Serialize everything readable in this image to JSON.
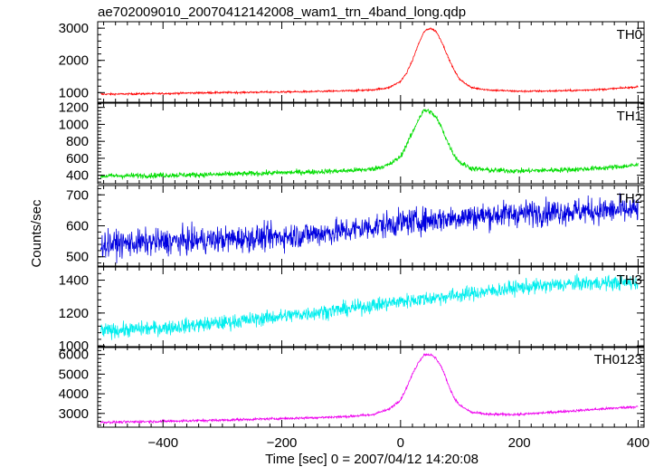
{
  "title": "ae702009010_20070412142008_wam1_trn_4band_long.qdp",
  "ylabel": "Counts/sec",
  "xlabel": "Time [sec] 0 = 2007/04/12 14:20:08",
  "chart_data": [
    {
      "type": "line",
      "name": "TH0",
      "color": "#ff0000",
      "ylim": [
        700,
        3200
      ],
      "yticks": [
        1000,
        2000,
        3000
      ],
      "xlim": [
        -510,
        410
      ],
      "xticks": [
        -400,
        -200,
        0,
        200,
        400
      ],
      "x": [
        -505,
        -450,
        -400,
        -350,
        -300,
        -250,
        -200,
        -150,
        -100,
        -50,
        -20,
        0,
        10,
        20,
        30,
        40,
        50,
        60,
        70,
        80,
        90,
        100,
        120,
        150,
        200,
        250,
        300,
        350,
        400
      ],
      "y": [
        950,
        960,
        970,
        990,
        1000,
        1010,
        1020,
        1030,
        1050,
        1080,
        1150,
        1350,
        1600,
        2000,
        2500,
        2900,
        3000,
        2900,
        2550,
        2100,
        1700,
        1400,
        1150,
        1080,
        1040,
        1050,
        1070,
        1110,
        1180
      ],
      "noise": 20
    },
    {
      "type": "line",
      "name": "TH1",
      "color": "#00dd00",
      "ylim": [
        300,
        1250
      ],
      "yticks": [
        400,
        600,
        800,
        1000,
        1200
      ],
      "xlim": [
        -510,
        410
      ],
      "xticks": [
        -400,
        -200,
        0,
        200,
        400
      ],
      "x": [
        -505,
        -450,
        -400,
        -350,
        -300,
        -250,
        -200,
        -150,
        -100,
        -50,
        -20,
        0,
        10,
        20,
        30,
        40,
        50,
        60,
        70,
        80,
        90,
        100,
        120,
        150,
        200,
        250,
        300,
        350,
        400
      ],
      "y": [
        390,
        395,
        400,
        405,
        410,
        420,
        430,
        440,
        450,
        470,
        520,
        620,
        760,
        900,
        1060,
        1170,
        1150,
        1080,
        950,
        780,
        640,
        550,
        480,
        460,
        450,
        460,
        470,
        490,
        520
      ],
      "noise": 22
    },
    {
      "type": "line",
      "name": "TH2",
      "color": "#0000e0",
      "ylim": [
        470,
        730
      ],
      "yticks": [
        500,
        600,
        700
      ],
      "xlim": [
        -510,
        410
      ],
      "xticks": [
        -400,
        -200,
        0,
        200,
        400
      ],
      "x": [
        -505,
        -400,
        -300,
        -200,
        -100,
        0,
        100,
        200,
        300,
        400
      ],
      "y": [
        540,
        548,
        556,
        565,
        582,
        610,
        628,
        640,
        648,
        650
      ],
      "noise": 30
    },
    {
      "type": "line",
      "name": "TH3",
      "color": "#00eeee",
      "ylim": [
        990,
        1480
      ],
      "yticks": [
        1000,
        1200,
        1400
      ],
      "xlim": [
        -510,
        410
      ],
      "xticks": [
        -400,
        -200,
        0,
        200,
        400
      ],
      "x": [
        -505,
        -400,
        -300,
        -200,
        -100,
        0,
        100,
        200,
        300,
        400
      ],
      "y": [
        1090,
        1110,
        1140,
        1180,
        1220,
        1270,
        1310,
        1355,
        1380,
        1385
      ],
      "noise": 32
    },
    {
      "type": "line",
      "name": "TH0123",
      "color": "#ee00ee",
      "ylim": [
        2300,
        6400
      ],
      "yticks": [
        3000,
        4000,
        5000,
        6000
      ],
      "xlim": [
        -510,
        410
      ],
      "xticks": [
        -400,
        -200,
        0,
        200,
        400
      ],
      "x": [
        -505,
        -450,
        -400,
        -350,
        -300,
        -250,
        -200,
        -150,
        -100,
        -50,
        -20,
        0,
        10,
        20,
        30,
        40,
        50,
        60,
        70,
        80,
        90,
        100,
        120,
        150,
        200,
        250,
        300,
        350,
        400
      ],
      "y": [
        2550,
        2570,
        2600,
        2630,
        2660,
        2700,
        2740,
        2780,
        2830,
        2920,
        3200,
        3700,
        4300,
        5000,
        5600,
        6000,
        6000,
        5800,
        5300,
        4500,
        3800,
        3400,
        3050,
        2950,
        2950,
        3050,
        3150,
        3250,
        3350
      ],
      "noise": 45
    }
  ]
}
